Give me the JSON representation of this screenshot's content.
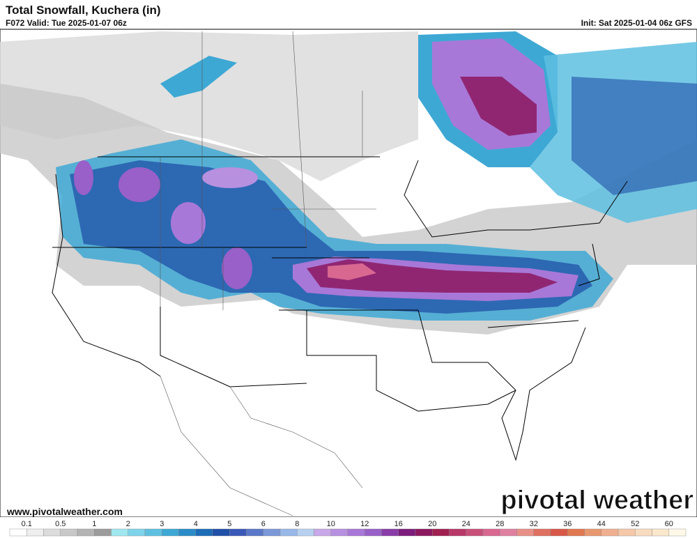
{
  "header": {
    "title": "Total Snowfall, Kuchera (in)",
    "valid": "F072 Valid: Tue 2025-01-07 06z",
    "init": "Init: Sat 2025-01-04 06z GFS"
  },
  "footer": {
    "website": "www.pivotalweather.com",
    "logo": "pivotal weather"
  },
  "colorbar": {
    "ticks": [
      0.1,
      0.5,
      1,
      2,
      3,
      4,
      5,
      6,
      8,
      10,
      12,
      16,
      20,
      24,
      28,
      32,
      36,
      44,
      52,
      60
    ],
    "colors": [
      "#ffffff",
      "#eeeeee",
      "#dcdcdc",
      "#c8c8c8",
      "#b4b4b4",
      "#9c9c9c",
      "#a0e8f0",
      "#7fd4ea",
      "#5ec0e0",
      "#3ea8d4",
      "#2a8cc8",
      "#1c6cb8",
      "#2050a8",
      "#3a58b8",
      "#5a78c8",
      "#7c98d8",
      "#98b8e8",
      "#b8d0f0",
      "#c8a8e8",
      "#b890e0",
      "#a878d8",
      "#9860c8",
      "#8a3ca8",
      "#7c1c7c",
      "#8c1860",
      "#a02050",
      "#b83868",
      "#c85078",
      "#d86890",
      "#e080a0",
      "#e89088",
      "#e07060",
      "#d85848",
      "#e07850",
      "#e89870",
      "#f0b090",
      "#f4c8a8",
      "#f8dcc0",
      "#fae8cc",
      "#fef8e8"
    ]
  }
}
